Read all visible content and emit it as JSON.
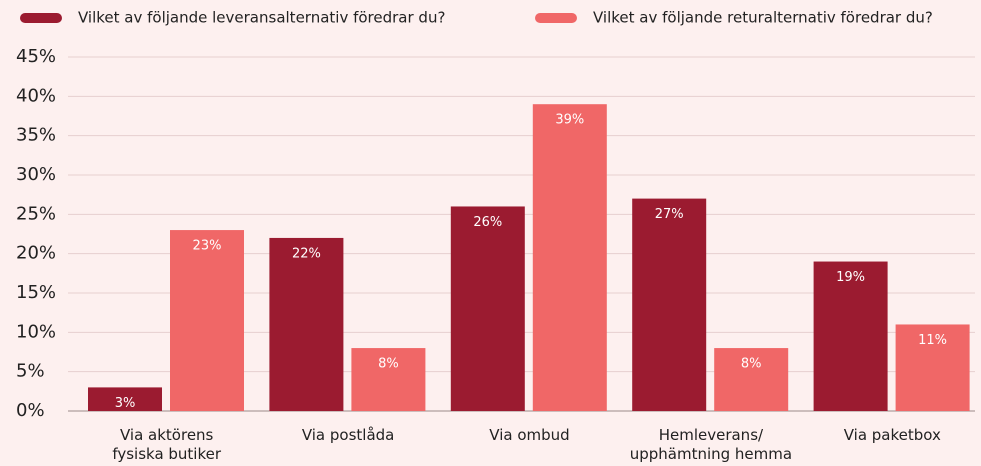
{
  "chart_data": {
    "type": "bar",
    "categories": [
      "Via aktörens\nfysiska butiker",
      "Via postlåda",
      "Via ombud",
      "Hemleverans/\nupphämtning hemma",
      "Via paketbox"
    ],
    "series": [
      {
        "name": "Vilket av följande leveransalternativ föredrar du?",
        "color": "#9b1b30",
        "values": [
          3,
          22,
          26,
          27,
          19
        ],
        "value_labels": [
          "3%",
          "22%",
          "26%",
          "27%",
          "19%"
        ]
      },
      {
        "name": "Vilket av följande returalternativ föredrar du?",
        "color": "#f06767",
        "values": [
          23,
          8,
          39,
          8,
          11
        ],
        "value_labels": [
          "23%",
          "8%",
          "39%",
          "8%",
          "11%"
        ]
      }
    ],
    "ylim": [
      0,
      45
    ],
    "yticks": [
      {
        "value": 0,
        "label": "0%"
      },
      {
        "value": 5,
        "label": "5%"
      },
      {
        "value": 10,
        "label": "10%"
      },
      {
        "value": 15,
        "label": "15%"
      },
      {
        "value": 20,
        "label": "20%"
      },
      {
        "value": 25,
        "label": "25%"
      },
      {
        "value": 30,
        "label": "30%"
      },
      {
        "value": 35,
        "label": "35%"
      },
      {
        "value": 40,
        "label": "40%"
      },
      {
        "value": 45,
        "label": "45%"
      }
    ],
    "grid": true,
    "legend": "top"
  }
}
